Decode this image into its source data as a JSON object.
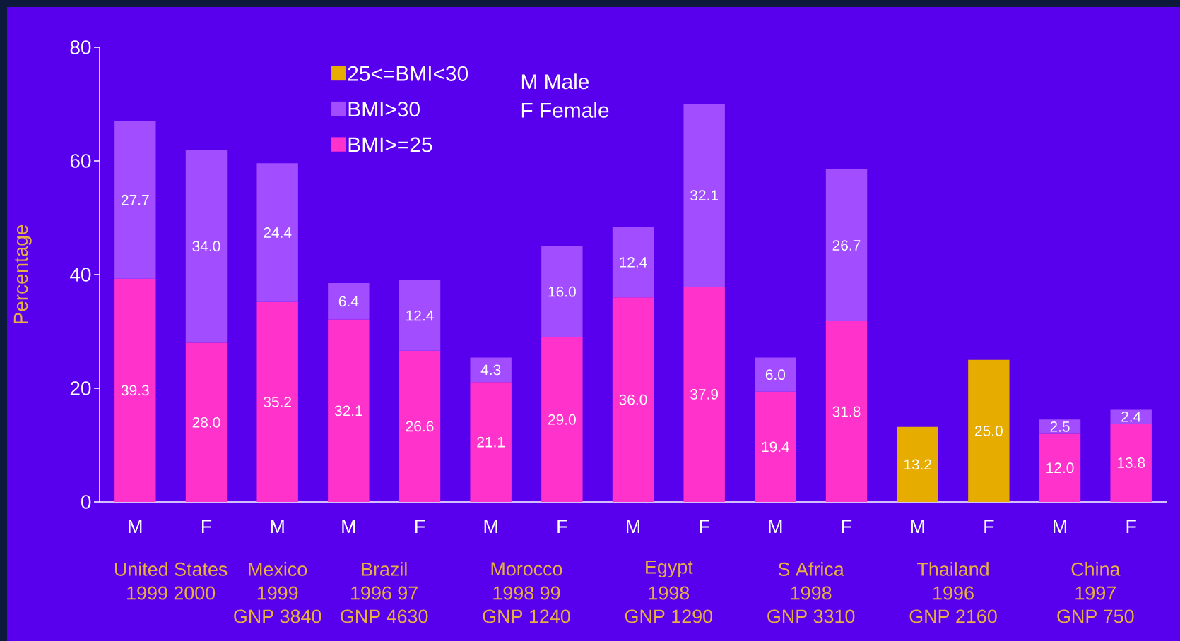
{
  "chart_data": {
    "type": "bar",
    "stacked": true,
    "ylabel": "Percentage",
    "categories": [
      "M",
      "F",
      "M",
      "M",
      "F",
      "M",
      "F",
      "M",
      "F",
      "M",
      "F",
      "M",
      "F",
      "M",
      "F"
    ],
    "series": [
      {
        "name": "BMI>=25",
        "color": "#ff33cc",
        "values": [
          39.3,
          28.0,
          35.2,
          32.1,
          26.6,
          21.1,
          29.0,
          36.0,
          37.9,
          19.4,
          31.8,
          null,
          null,
          12.0,
          13.8
        ],
        "value_labels": [
          "39.3",
          "28.0",
          "35.2",
          "32.1",
          "26.6",
          "21.1",
          "29.0",
          "36.0",
          "37.9",
          "19.4",
          "31.8",
          null,
          null,
          "12.0",
          "13.8"
        ]
      },
      {
        "name": "BMI>30",
        "color": "#a24dff",
        "values": [
          27.7,
          34.0,
          24.4,
          6.4,
          12.4,
          4.3,
          16.0,
          12.4,
          32.1,
          6.0,
          26.7,
          null,
          null,
          2.5,
          2.4
        ],
        "value_labels": [
          "27.7",
          "34.0",
          "24.4",
          "6.4",
          "12.4",
          "4.3",
          "16.0",
          "12.4",
          "32.1",
          "6.0",
          "26.7",
          null,
          null,
          "2.5",
          "2.4"
        ]
      },
      {
        "name": "25<=BMI<30",
        "color": "#e6ac00",
        "values": [
          null,
          null,
          null,
          null,
          null,
          null,
          null,
          null,
          null,
          null,
          null,
          13.2,
          25.0,
          null,
          null
        ],
        "value_labels": [
          null,
          null,
          null,
          null,
          null,
          null,
          null,
          null,
          null,
          null,
          null,
          "13.2",
          "25.0",
          null,
          null
        ]
      }
    ],
    "ylim": [
      0,
      80
    ],
    "yticks": [
      0,
      20,
      40,
      60,
      80
    ],
    "legend": "top left",
    "annotations": [
      "United States",
      "1999 2000",
      "Mexico",
      "1999",
      "GNP 3840",
      "Brazil",
      "1996 97",
      "GNP 4630",
      "Morocco",
      "1998 99",
      "GNP 1240",
      "Egypt",
      "1998",
      "GNP 1290",
      "S Africa",
      "1998",
      "GNP 3310",
      "Thailand",
      "1996",
      "GNP 2160",
      "China",
      "1997",
      "GNP 750",
      "M Male",
      "F Female"
    ]
  }
}
